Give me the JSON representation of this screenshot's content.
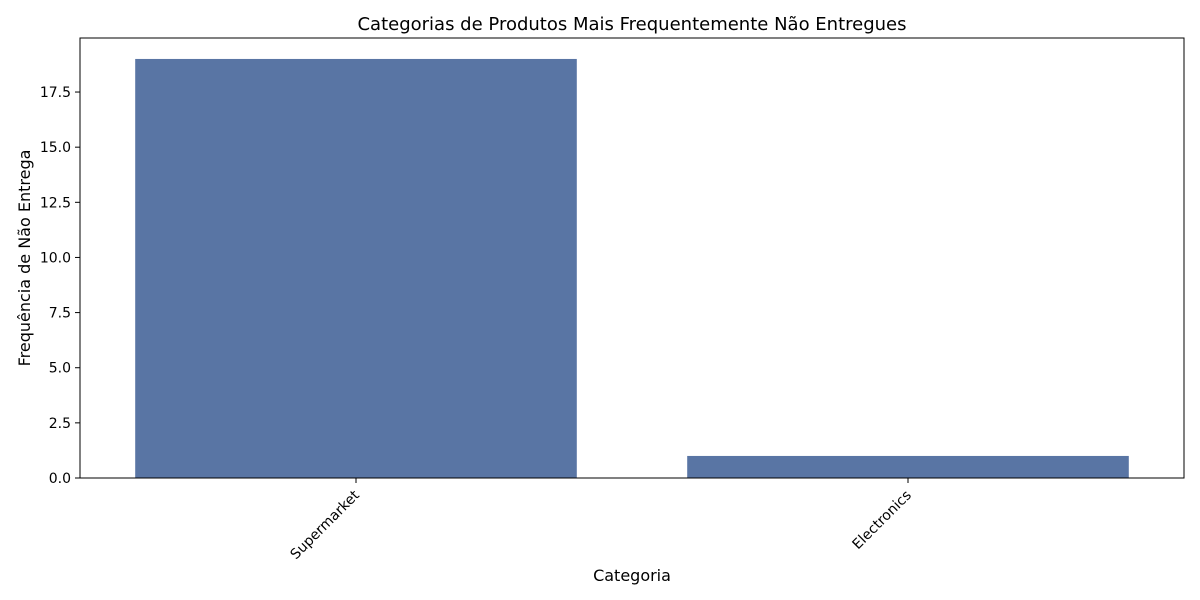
{
  "chart_data": {
    "type": "bar",
    "title": "Categorias de Produtos Mais Frequentemente Não Entregues",
    "xlabel": "Categoria",
    "ylabel": "Frequência de Não Entrega",
    "categories": [
      "Supermarket",
      "Electronics"
    ],
    "values": [
      19,
      1
    ],
    "ylim": [
      0,
      20
    ],
    "yticks": [
      0.0,
      2.5,
      5.0,
      7.5,
      10.0,
      12.5,
      15.0,
      17.5
    ],
    "ytick_labels": [
      "0.0",
      "2.5",
      "5.0",
      "7.5",
      "10.0",
      "12.5",
      "15.0",
      "17.5"
    ],
    "bar_color": "#5975a4",
    "grid": false,
    "legend": "none"
  }
}
